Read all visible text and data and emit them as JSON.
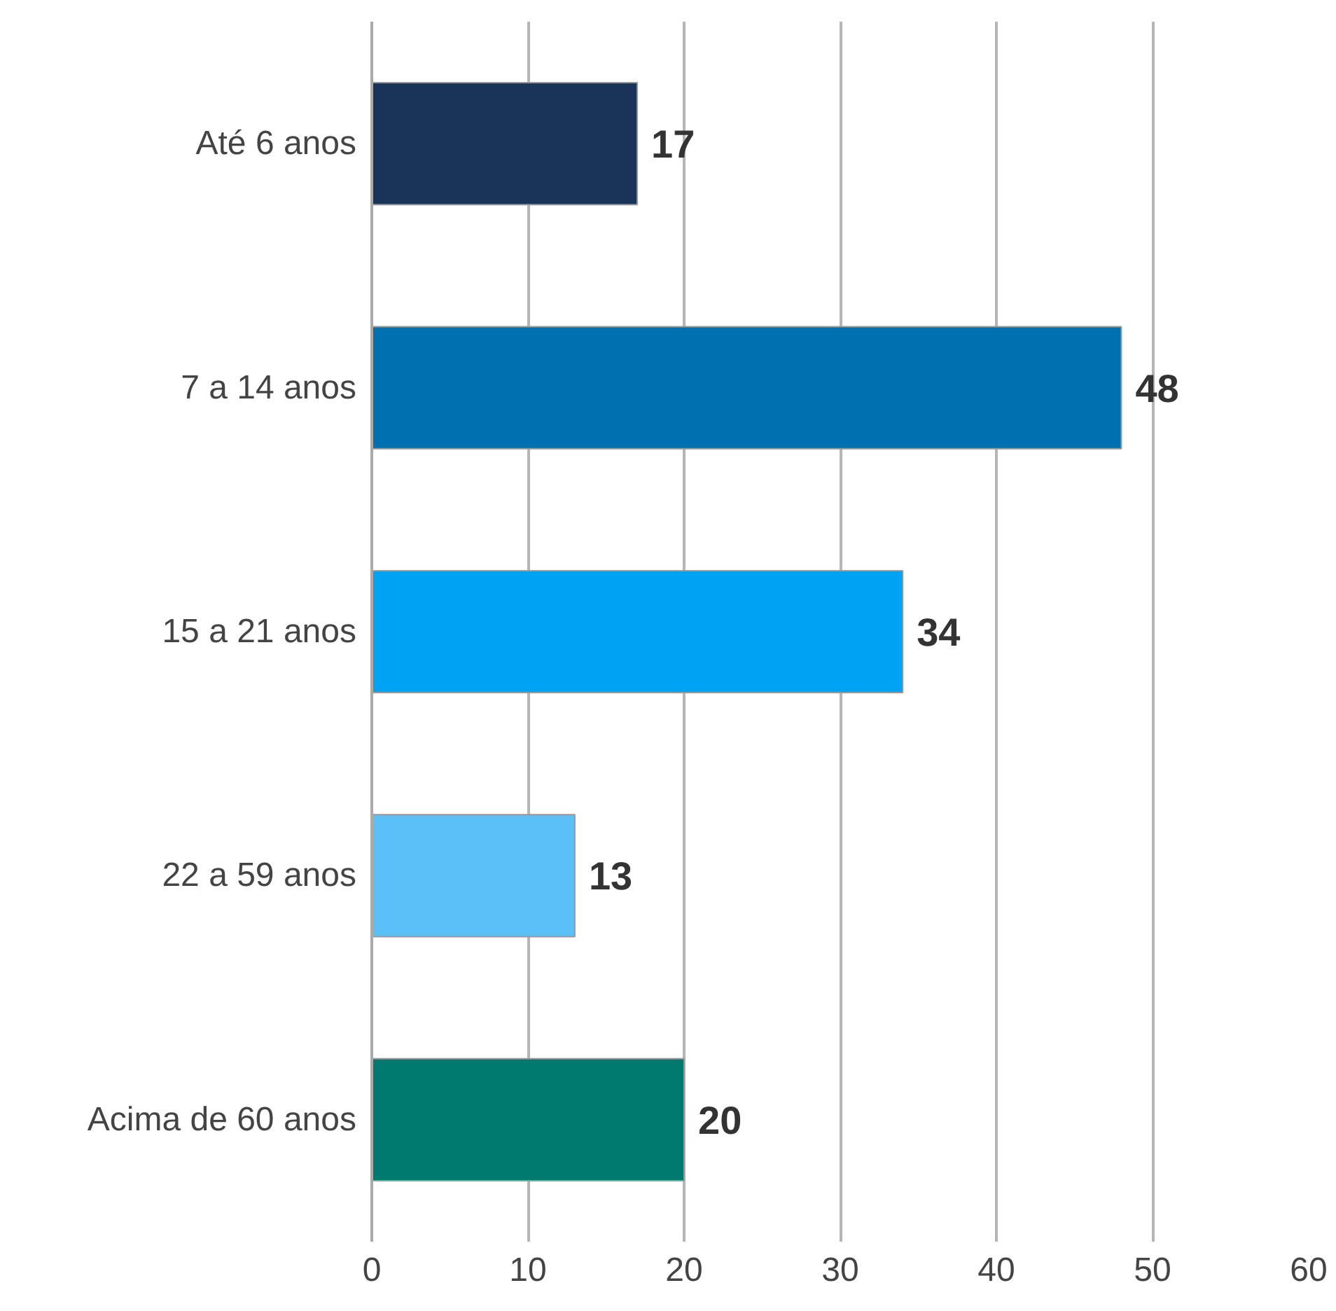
{
  "chart_data": {
    "type": "bar",
    "orientation": "horizontal",
    "categories": [
      "Até 6 anos",
      "7 a 14 anos",
      "15 a 21 anos",
      "22 a 59 anos",
      "Acima de 60 anos"
    ],
    "values": [
      17,
      48,
      34,
      13,
      20
    ],
    "colors": [
      "#1a3359",
      "#0070b0",
      "#00a2f2",
      "#5bc0f8",
      "#007a6e"
    ],
    "xlim": [
      0,
      60
    ],
    "xticks": [
      0,
      10,
      20,
      30,
      40,
      50,
      60
    ],
    "grid": "x",
    "data_labels": true
  }
}
